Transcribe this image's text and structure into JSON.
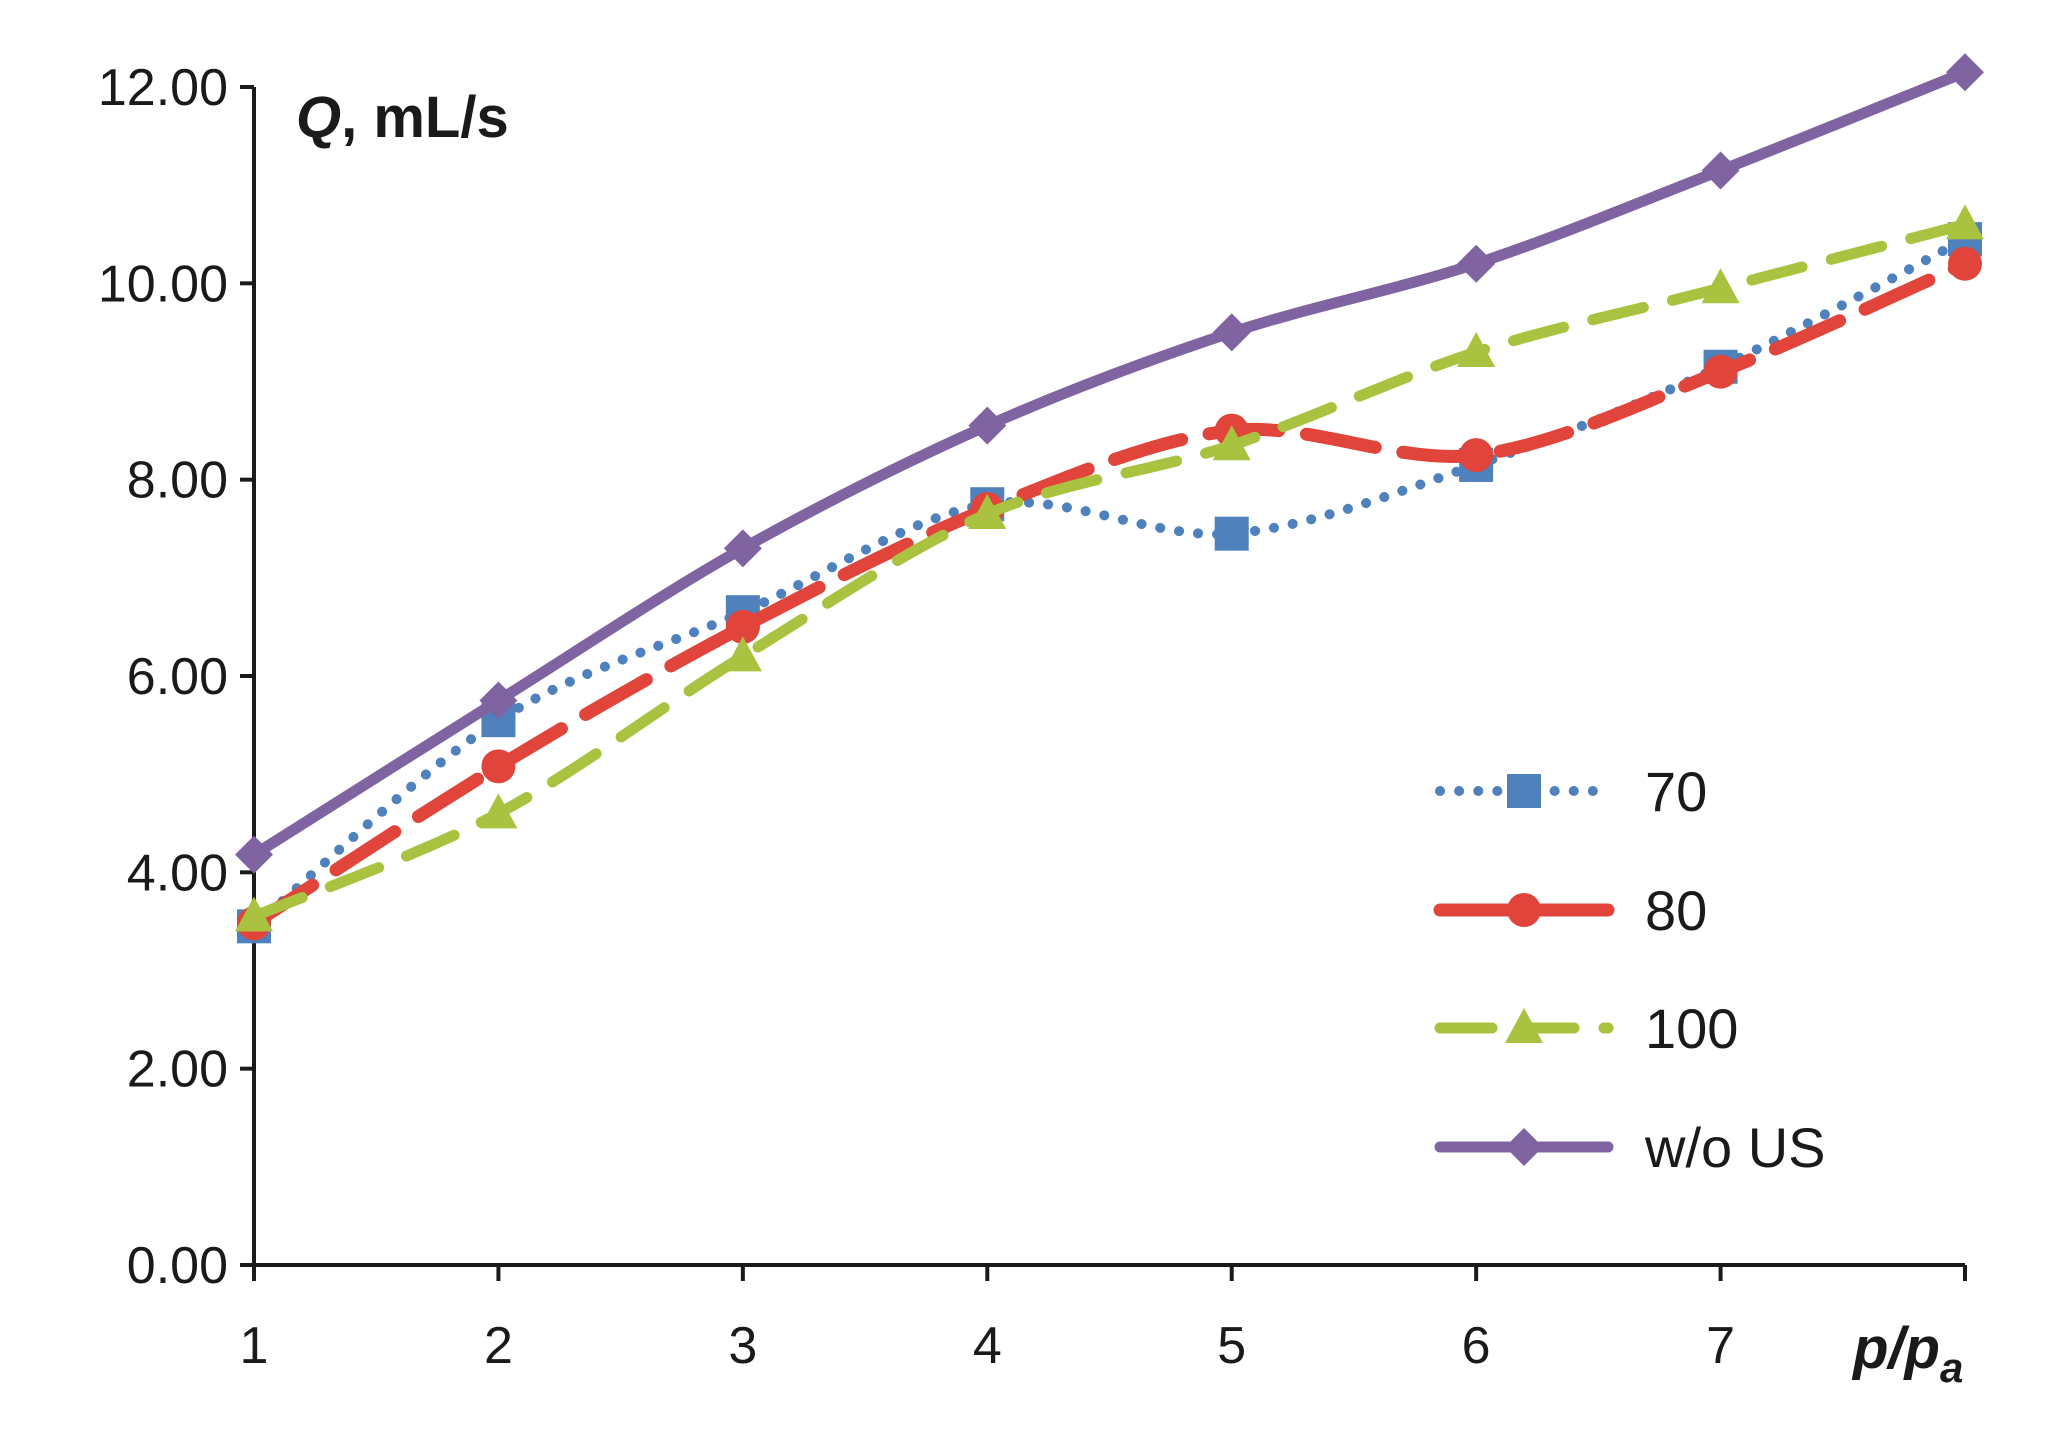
{
  "chart_data": {
    "type": "line",
    "title": "",
    "ylabel_symbol": "Q",
    "ylabel_unit": ", mL/s",
    "xlabel_main": "p/p",
    "xlabel_sub": "a",
    "x": [
      1,
      2,
      3,
      4,
      5,
      6,
      7,
      8
    ],
    "x_tick_labels": [
      "1",
      "2",
      "3",
      "4",
      "5",
      "6",
      "7"
    ],
    "y_tick_labels": [
      "0.00",
      "2.00",
      "4.00",
      "6.00",
      "8.00",
      "10.00",
      "12.00"
    ],
    "xlim": [
      1,
      8
    ],
    "ylim": [
      0,
      12
    ],
    "grid": false,
    "legend_position": "right-middle",
    "series": [
      {
        "name": "70",
        "color": "#4f81bd",
        "dash": "dotted",
        "marker": "square",
        "values": [
          3.45,
          5.55,
          6.65,
          7.75,
          7.45,
          8.15,
          9.15,
          10.45
        ]
      },
      {
        "name": "80",
        "color": "#e0443a",
        "dash": "long-dash",
        "marker": "circle",
        "values": [
          3.48,
          5.08,
          6.5,
          7.7,
          8.5,
          8.25,
          9.1,
          10.2
        ]
      },
      {
        "name": "100",
        "color": "#a9c23f",
        "dash": "dash",
        "marker": "triangle",
        "values": [
          3.55,
          4.6,
          6.2,
          7.65,
          8.35,
          9.3,
          9.95,
          10.6
        ]
      },
      {
        "name": "w/o US",
        "color": "#8064a2",
        "dash": "solid",
        "marker": "diamond",
        "values": [
          4.18,
          5.75,
          7.3,
          8.55,
          9.5,
          10.2,
          11.15,
          12.15
        ]
      }
    ]
  }
}
